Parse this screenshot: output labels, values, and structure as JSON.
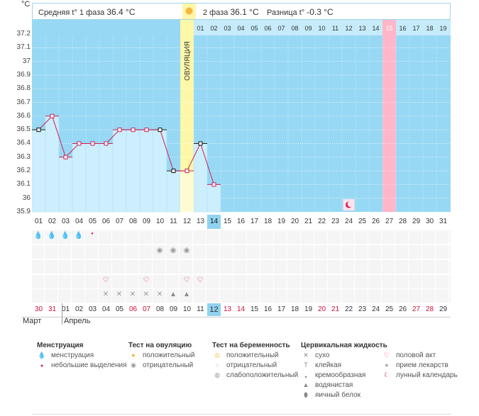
{
  "header": {
    "unit": "°C",
    "phase1_label": "Средняя t° 1 фаза",
    "phase1_value": "36.4 °C",
    "phase2_label": "2 фаза",
    "phase2_value": "36.1 °C",
    "diff_label": "Разница t°",
    "diff_value": "-0.3 °C",
    "ovulation_label": "ОВУЛЯЦИЯ"
  },
  "colors": {
    "chart_bg": "#97d8f4",
    "bar_fill": "#cdeefc",
    "line": "#cc2255",
    "ovulation": "#fff7a8",
    "highlight_day": "#ffb6c8",
    "current_day": "#8fd3f0",
    "red_date": "#d0103a"
  },
  "chart_data": {
    "type": "line",
    "ylim": [
      35.9,
      37.2
    ],
    "yticks": [
      "37.2",
      "37.1",
      "37",
      "36.9",
      "36.8",
      "36.7",
      "36.6",
      "36.5",
      "36.4",
      "36.3",
      "36.2",
      "36.1",
      "36",
      "35.9"
    ],
    "cycle_days": [
      "01",
      "02",
      "03",
      "04",
      "05",
      "06",
      "07",
      "08",
      "09",
      "10",
      "11",
      "12",
      "13",
      "14",
      "15",
      "16",
      "17",
      "18",
      "19",
      "20",
      "21",
      "22",
      "23",
      "24",
      "25",
      "26",
      "27",
      "28",
      "29",
      "30",
      "31"
    ],
    "top_days_after_ovulation": [
      "01",
      "02",
      "03",
      "04",
      "05",
      "06",
      "07",
      "08",
      "09",
      "10",
      "11",
      "12",
      "13",
      "14",
      "15",
      "16",
      "17",
      "18",
      "19"
    ],
    "values": [
      36.5,
      36.6,
      36.3,
      36.4,
      36.4,
      36.4,
      36.5,
      36.5,
      36.5,
      36.5,
      36.2,
      36.2,
      36.4,
      36.1
    ],
    "ovulation_day": 12,
    "current_day": 14,
    "highlight_day": 27,
    "moon_day": 24,
    "marker_styles": [
      "black",
      "pink",
      "pink",
      "pink",
      "pink",
      "pink",
      "pink",
      "pink",
      "pink",
      "black",
      "black",
      "pink",
      "black",
      "pink"
    ]
  },
  "rows": {
    "menstruation": {
      "strong": [
        1,
        2,
        3,
        4
      ],
      "weak": [
        5
      ]
    },
    "ovulation_test": {
      "negative": [
        10,
        11,
        12
      ]
    },
    "intercourse": [
      6,
      9,
      12,
      13
    ],
    "cervical": {
      "dry": [
        6,
        7,
        8,
        9,
        10
      ],
      "watery": [
        11,
        12
      ]
    }
  },
  "calendar": {
    "dates": [
      "30",
      "31",
      "01",
      "02",
      "03",
      "04",
      "05",
      "06",
      "07",
      "08",
      "09",
      "10",
      "11",
      "12",
      "13",
      "14",
      "15",
      "16",
      "17",
      "18",
      "19",
      "20",
      "21",
      "22",
      "23",
      "24",
      "25",
      "26",
      "27",
      "28",
      "29"
    ],
    "red_idx": [
      0,
      1,
      7,
      8,
      14,
      15,
      21,
      22,
      28,
      29
    ],
    "current_idx": 13,
    "month1": "Март",
    "month2": "Апрель"
  },
  "legend": {
    "menstruation": {
      "title": "Менструация",
      "items": [
        "менструация",
        "небольшие выделения"
      ]
    },
    "ovulation": {
      "title": "Тест на овуляцию",
      "items": [
        "положительный",
        "отрицательный"
      ]
    },
    "pregnancy": {
      "title": "Тест на беременность",
      "items": [
        "положительный",
        "отрицательный",
        "слабоположительный"
      ]
    },
    "cervical": {
      "title": "Цервикальная жидкость",
      "items": [
        "сухо",
        "клейкая",
        "кремообразная",
        "водянистая",
        "яичный белок"
      ]
    },
    "other": {
      "items": [
        "половой акт",
        "прием лекарств",
        "лунный календарь"
      ]
    }
  }
}
